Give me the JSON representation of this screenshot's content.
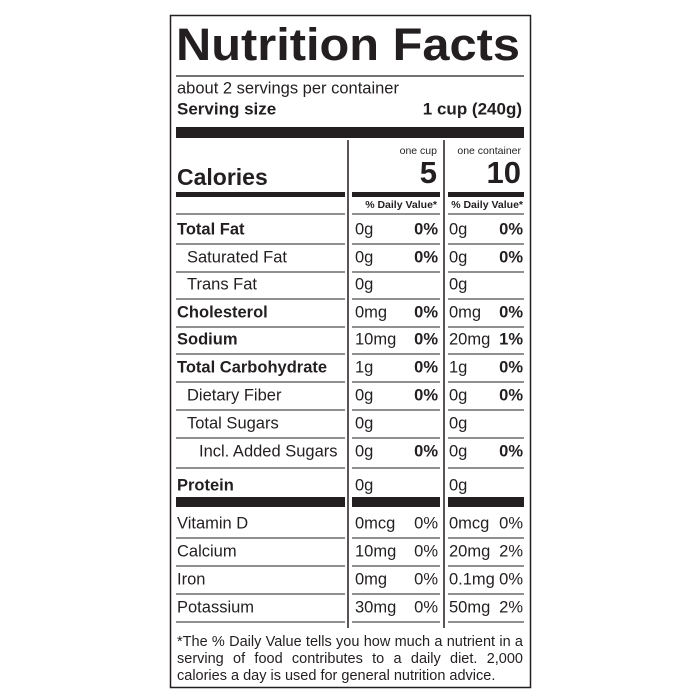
{
  "title": "Nutrition Facts",
  "servings": "about 2 servings per container",
  "serving_size": {
    "label": "Serving size",
    "value": "1 cup (240g)"
  },
  "calories": {
    "label": "Calories",
    "cup_head": "one cup",
    "cup": "5",
    "container_head": "one container",
    "container": "10"
  },
  "dv_head": {
    "cup": "% Daily Value*",
    "container": "% Daily Value*"
  },
  "nutrients": [
    {
      "name": "Total Fat",
      "cup": {
        "amount": "0g",
        "dv": "0%"
      },
      "container": {
        "amount": "0g",
        "dv": "0%"
      }
    },
    {
      "name": "Saturated Fat",
      "cup": {
        "amount": "0g",
        "dv": "0%"
      },
      "container": {
        "amount": "0g",
        "dv": "0%"
      }
    },
    {
      "name": "Trans Fat",
      "cup": {
        "amount": "0g"
      },
      "container": {
        "amount": "0g"
      }
    },
    {
      "name": "Cholesterol",
      "cup": {
        "amount": "0mg",
        "dv": "0%"
      },
      "container": {
        "amount": "0mg",
        "dv": "0%"
      }
    },
    {
      "name": "Sodium",
      "cup": {
        "amount": "10mg",
        "dv": "0%"
      },
      "container": {
        "amount": "20mg",
        "dv": "1%"
      }
    },
    {
      "name": "Total Carbohydrate",
      "cup": {
        "amount": "1g",
        "dv": "0%"
      },
      "container": {
        "amount": "1g",
        "dv": "0%"
      }
    },
    {
      "name": "Dietary Fiber",
      "cup": {
        "amount": "0g",
        "dv": "0%"
      },
      "container": {
        "amount": "0g",
        "dv": "0%"
      }
    },
    {
      "name": "Total Sugars",
      "cup": {
        "amount": "0g"
      },
      "container": {
        "amount": "0g"
      }
    },
    {
      "name": "Incl. Added Sugars",
      "cup": {
        "amount": "0g",
        "dv": "0%"
      },
      "container": {
        "amount": "0g",
        "dv": "0%"
      }
    },
    {
      "name": "Protein",
      "cup": {
        "amount": "0g"
      },
      "container": {
        "amount": "0g"
      }
    }
  ],
  "vitamins": [
    {
      "name": "Vitamin D",
      "cup": {
        "amount": "0mcg",
        "dv": "0%"
      },
      "container": {
        "amount": "0mcg",
        "dv": "0%"
      }
    },
    {
      "name": "Calcium",
      "cup": {
        "amount": "10mg",
        "dv": "0%"
      },
      "container": {
        "amount": "20mg",
        "dv": "2%"
      }
    },
    {
      "name": "Iron",
      "cup": {
        "amount": "0mg",
        "dv": "0%"
      },
      "container": {
        "amount": "0.1mg",
        "dv": "0%"
      }
    },
    {
      "name": "Potassium",
      "cup": {
        "amount": "30mg",
        "dv": "0%"
      },
      "container": {
        "amount": "50mg",
        "dv": "2%"
      }
    }
  ],
  "footnote": "*The % Daily Value tells you how much a nutrient in a serving of food contributes to a daily diet. 2,000 calories a day is used for general nutrition advice."
}
